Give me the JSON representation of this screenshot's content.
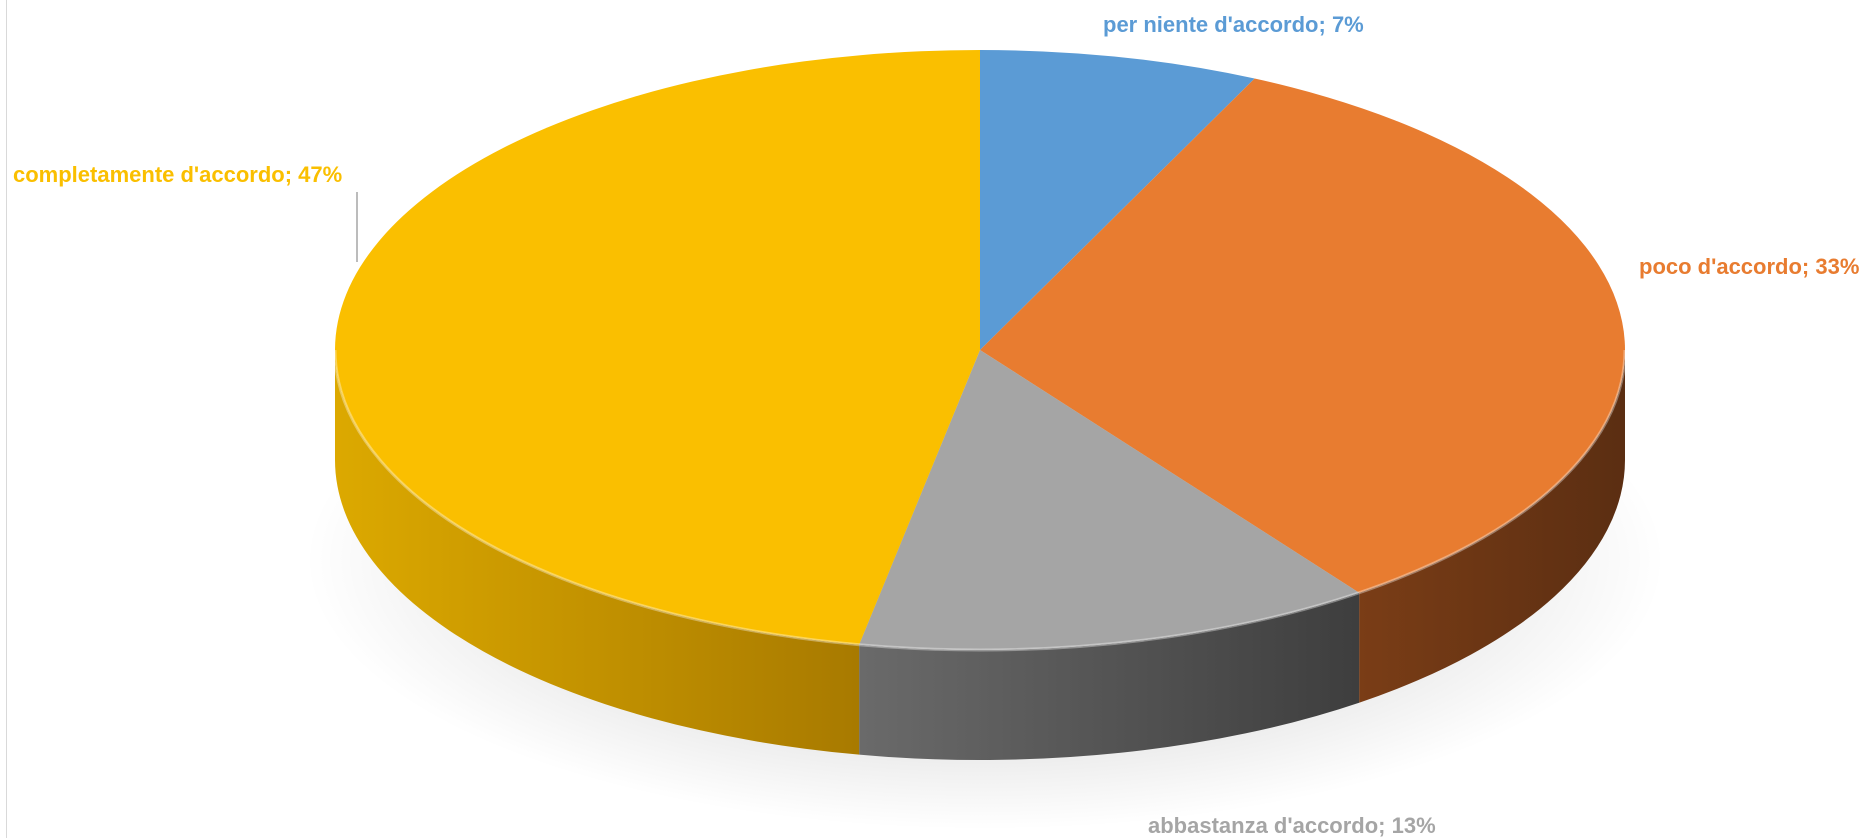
{
  "chart_data": {
    "type": "pie",
    "title": "",
    "style": "3d",
    "slices": [
      {
        "label": "per niente d'accordo",
        "value": 7,
        "display": "per niente d'accordo; 7%",
        "color": "#5b9bd5",
        "side_dark": "#2f5d8a",
        "side_light": "#4a84bc"
      },
      {
        "label": "poco d'accordo",
        "value": 33,
        "display": "poco d'accordo; 33%",
        "color": "#e87c30",
        "side_dark": "#5b2e12",
        "side_light": "#7a3d16"
      },
      {
        "label": "abbastanza d'accordo",
        "value": 13,
        "display": "abbastanza d'accordo; 13%",
        "color": "#a5a5a5",
        "side_dark": "#3e3e3e",
        "side_light": "#6a6a6a"
      },
      {
        "label": "completamente d'accordo",
        "value": 47,
        "display": "completamente d'accordo; 47%",
        "color": "#fabf00",
        "side_dark": "#a87a00",
        "side_light": "#dca900"
      }
    ]
  }
}
